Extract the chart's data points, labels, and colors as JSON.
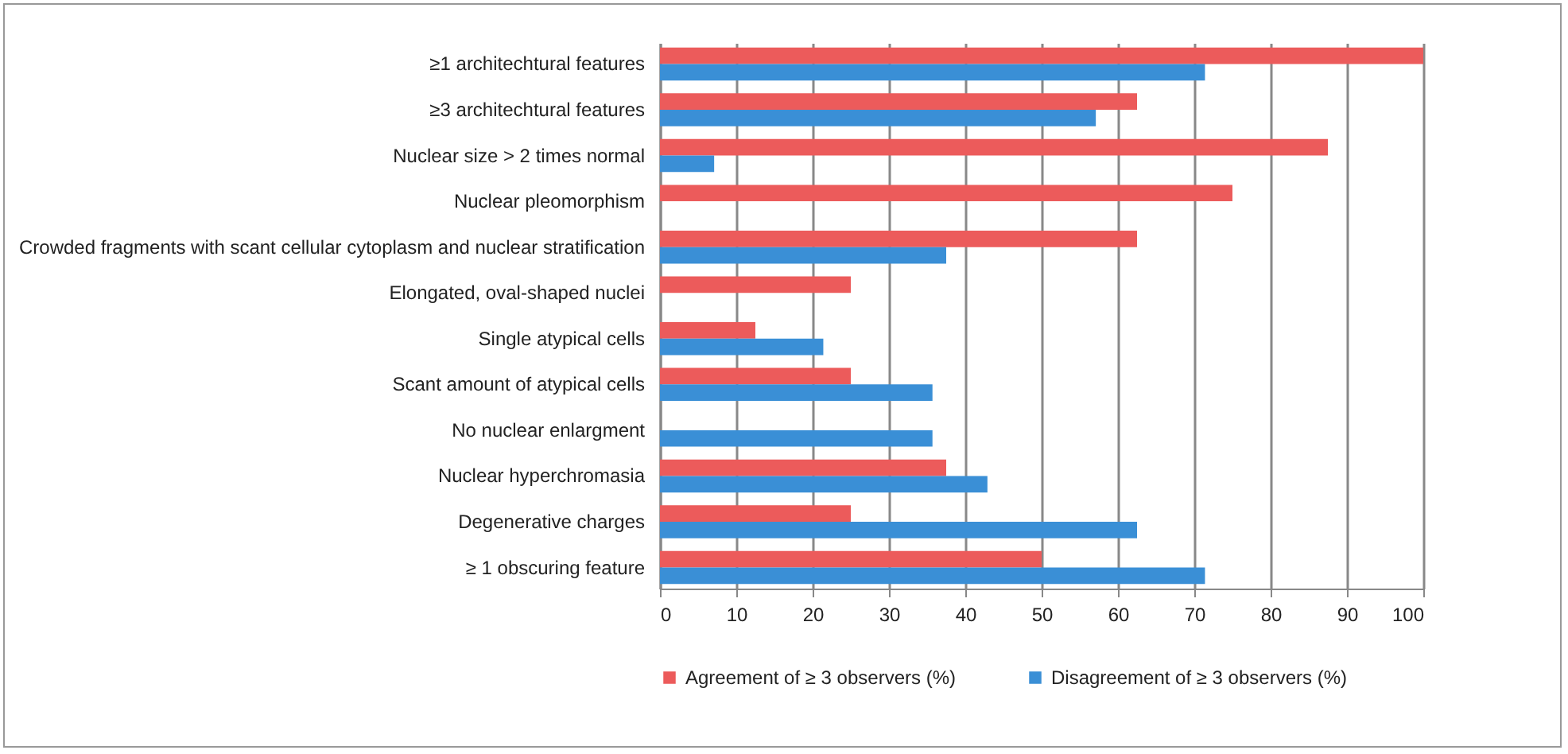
{
  "chart_data": {
    "type": "bar",
    "orientation": "horizontal",
    "categories": [
      "≥1 architechtural features",
      "≥3 architechtural features",
      "Nuclear size > 2 times normal",
      "Nuclear pleomorphism",
      "Crowded fragments with scant cellular cytoplasm and nuclear stratification",
      "Elongated, oval-shaped nuclei",
      "Single atypical cells",
      "Scant amount of atypical cells",
      "No nuclear enlargment",
      "Nuclear hyperchromasia",
      "Degenerative charges",
      "≥ 1 obscuring feature"
    ],
    "series": [
      {
        "name": "Agreement of  ≥ 3 observers (%)",
        "color": "#ec5b5b",
        "values": [
          100,
          62.5,
          87.5,
          75,
          62.5,
          25,
          12.5,
          25,
          null,
          37.5,
          25,
          50
        ]
      },
      {
        "name": "Disagreement of  ≥ 3 observers (%)",
        "color": "#3a8fd6",
        "values": [
          71.4,
          57.1,
          7.1,
          null,
          37.5,
          null,
          21.4,
          35.7,
          35.7,
          42.9,
          62.5,
          71.4
        ]
      }
    ],
    "xlim": [
      0,
      100
    ],
    "xticks": [
      0,
      10,
      20,
      30,
      40,
      50,
      60,
      70,
      80,
      90,
      100
    ],
    "grid": "x",
    "legend": "bottom"
  }
}
